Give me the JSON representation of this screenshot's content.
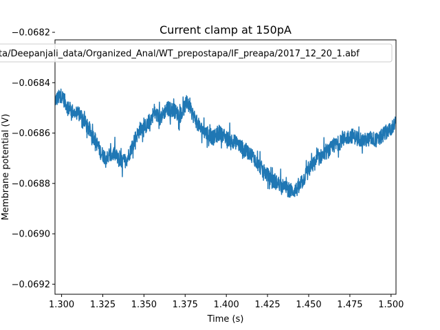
{
  "chart_data": {
    "type": "line",
    "title": "Current clamp at 150pA",
    "xlabel": "Time (s)",
    "ylabel": "Membrane potential (V)",
    "xlim": [
      1.296,
      1.503
    ],
    "ylim": [
      -0.06924,
      -0.06823
    ],
    "x_ticks": [
      1.3,
      1.325,
      1.35,
      1.375,
      1.4,
      1.425,
      1.45,
      1.475,
      1.5
    ],
    "x_tick_labels": [
      "1.300",
      "1.325",
      "1.350",
      "1.375",
      "1.400",
      "1.425",
      "1.450",
      "1.475",
      "1.500"
    ],
    "y_ticks": [
      -0.0692,
      -0.069,
      -0.0688,
      -0.0686,
      -0.0684,
      -0.0682
    ],
    "y_tick_labels": [
      "−0.0692",
      "−0.0690",
      "−0.0688",
      "−0.0686",
      "−0.0684",
      "−0.0682"
    ],
    "grid": false,
    "legend_position": "top",
    "series": [
      {
        "name": "ta/Deepanjali_data/Organized_Anal/WT_prepostapa/IF_preapa/2017_12_20_1.abf",
        "color": "#1f77b4",
        "x": [
          1.296,
          1.3,
          1.304,
          1.308,
          1.312,
          1.316,
          1.32,
          1.324,
          1.328,
          1.332,
          1.336,
          1.34,
          1.344,
          1.348,
          1.352,
          1.356,
          1.36,
          1.364,
          1.368,
          1.372,
          1.376,
          1.38,
          1.384,
          1.388,
          1.392,
          1.396,
          1.4,
          1.404,
          1.408,
          1.412,
          1.416,
          1.42,
          1.424,
          1.428,
          1.432,
          1.436,
          1.44,
          1.444,
          1.448,
          1.452,
          1.456,
          1.46,
          1.464,
          1.468,
          1.472,
          1.476,
          1.48,
          1.484,
          1.488,
          1.492,
          1.496,
          1.5,
          1.503
        ],
        "y": [
          -0.06847,
          -0.06845,
          -0.0685,
          -0.06852,
          -0.06853,
          -0.06858,
          -0.06862,
          -0.06868,
          -0.0687,
          -0.06868,
          -0.06872,
          -0.0687,
          -0.06863,
          -0.06858,
          -0.06857,
          -0.06852,
          -0.06854,
          -0.0685,
          -0.06851,
          -0.06853,
          -0.06848,
          -0.06853,
          -0.06858,
          -0.0686,
          -0.06862,
          -0.0686,
          -0.06862,
          -0.06863,
          -0.06865,
          -0.06867,
          -0.06869,
          -0.06873,
          -0.06876,
          -0.06879,
          -0.0688,
          -0.06882,
          -0.06883,
          -0.06882,
          -0.06877,
          -0.06873,
          -0.0687,
          -0.06868,
          -0.06866,
          -0.06864,
          -0.06862,
          -0.06861,
          -0.06862,
          -0.06863,
          -0.06862,
          -0.06863,
          -0.0686,
          -0.06858,
          -0.06856
        ]
      }
    ]
  }
}
